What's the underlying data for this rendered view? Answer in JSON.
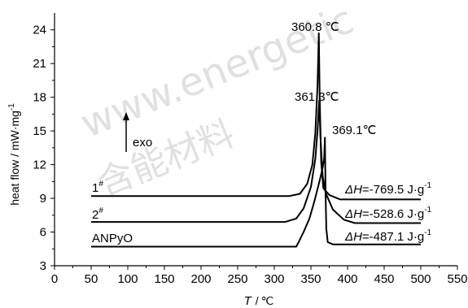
{
  "chart_data": {
    "type": "line",
    "title": "",
    "xlabel": "T",
    "xlabel_unit": "℃",
    "ylabel": "heat flow / mW·mg",
    "ylabel_superscript": "-1",
    "xlim": [
      0,
      550
    ],
    "ylim": [
      3,
      25.5
    ],
    "xticks": [
      0,
      50,
      100,
      150,
      200,
      250,
      300,
      350,
      400,
      450,
      500,
      550
    ],
    "yticks": [
      3,
      6,
      9,
      12,
      15,
      18,
      21,
      24
    ],
    "grid": false,
    "series": [
      {
        "name": "1",
        "name_superscript": "#",
        "color": "#000000",
        "peak_label": "360.8 ℃",
        "points": [
          [
            50,
            9.2
          ],
          [
            320,
            9.2
          ],
          [
            335,
            9.4
          ],
          [
            345,
            10.3
          ],
          [
            352,
            12.0
          ],
          [
            356,
            14.8
          ],
          [
            359,
            19.0
          ],
          [
            360.8,
            23.7
          ],
          [
            362,
            18.0
          ],
          [
            364,
            12.2
          ],
          [
            367,
            9.9
          ],
          [
            375,
            9.3
          ],
          [
            390,
            8.9
          ],
          [
            400,
            8.9
          ],
          [
            500,
            8.9
          ]
        ],
        "enthalpy": {
          "symbol": "ΔH",
          "value": "=-769.5",
          "unit": "J·g",
          "unit_superscript": "-1"
        }
      },
      {
        "name": "2",
        "name_superscript": "#",
        "color": "#000000",
        "peak_label": "361.3℃",
        "points": [
          [
            50,
            6.9
          ],
          [
            315,
            6.9
          ],
          [
            330,
            7.2
          ],
          [
            340,
            8.1
          ],
          [
            350,
            10.0
          ],
          [
            356,
            12.5
          ],
          [
            359,
            15.0
          ],
          [
            361.3,
            17.7
          ],
          [
            363,
            14.5
          ],
          [
            366,
            11.0
          ],
          [
            370,
            9.5
          ],
          [
            380,
            8.0
          ],
          [
            395,
            7.1
          ],
          [
            410,
            6.8
          ],
          [
            500,
            6.8
          ]
        ],
        "enthalpy": {
          "symbol": "ΔH",
          "value": "=-528.6",
          "unit": "J·g",
          "unit_superscript": "-1"
        }
      },
      {
        "name": "ANPyO",
        "color": "#000000",
        "peak_label": "369.1℃",
        "points": [
          [
            50,
            4.7
          ],
          [
            330,
            4.7
          ],
          [
            334,
            5.2
          ],
          [
            340,
            6.0
          ],
          [
            348,
            7.2
          ],
          [
            355,
            8.8
          ],
          [
            362,
            10.6
          ],
          [
            366,
            11.7
          ],
          [
            368,
            12.5
          ],
          [
            369.1,
            14.4
          ],
          [
            370,
            9.5
          ],
          [
            371,
            6.3
          ],
          [
            373,
            5.1
          ],
          [
            380,
            4.9
          ],
          [
            500,
            4.9
          ]
        ],
        "enthalpy": {
          "symbol": "ΔH",
          "value": "=-487.1",
          "unit": "J·g",
          "unit_superscript": "-1"
        }
      }
    ],
    "annotations": [
      {
        "text": "exo",
        "arrow": "up"
      }
    ]
  },
  "watermark": {
    "line1": "www.energetic",
    "line2": "含能材料"
  }
}
